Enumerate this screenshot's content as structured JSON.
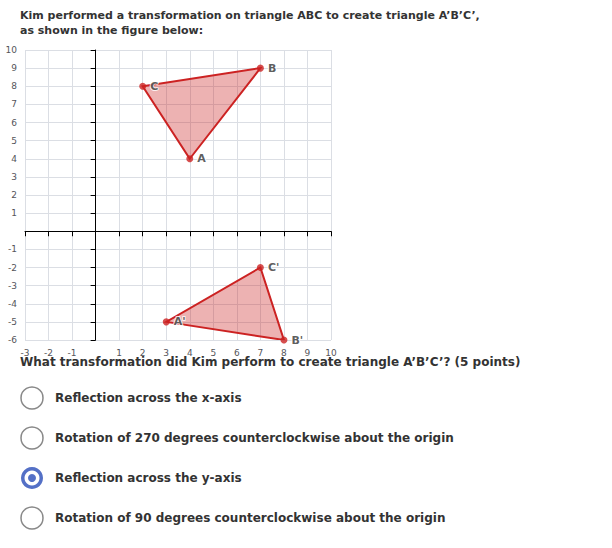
{
  "chart_data": {
    "type": "polygon",
    "title": "Kim performed a transformation on triangle ABC to create triangle A’B’C’, as shown in the figure below:",
    "xlim": [
      -3,
      10
    ],
    "ylim": [
      -6,
      10
    ],
    "xticks": [
      -3,
      -2,
      -1,
      1,
      2,
      3,
      4,
      5,
      6,
      7,
      8,
      9,
      10
    ],
    "yticks": [
      -6,
      -5,
      -4,
      -3,
      -2,
      -1,
      1,
      2,
      3,
      4,
      5,
      6,
      7,
      8,
      9,
      10
    ],
    "grid": true,
    "series": [
      {
        "color": "#cc2222",
        "x": [
          4,
          7,
          2
        ],
        "y": [
          4,
          9,
          8
        ],
        "point_labels": [
          "A",
          "B",
          "C"
        ]
      },
      {
        "color": "#cc2222",
        "x": [
          3,
          8,
          7
        ],
        "y": [
          -5,
          -6,
          -2
        ],
        "point_labels": [
          "A'",
          "B'",
          "C'"
        ]
      }
    ],
    "question": "What transformation did Kim perform to create triangle A’B’C’? (5 points)",
    "choices": [
      {
        "text": "Reflection across the x-axis",
        "selected": false
      },
      {
        "text": "Rotation of 270 degrees counterclockwise about the origin",
        "selected": false
      },
      {
        "text": "Reflection across the y-axis",
        "selected": true
      },
      {
        "text": "Rotation of 90 degrees counterclockwise about the origin",
        "selected": false
      }
    ]
  }
}
